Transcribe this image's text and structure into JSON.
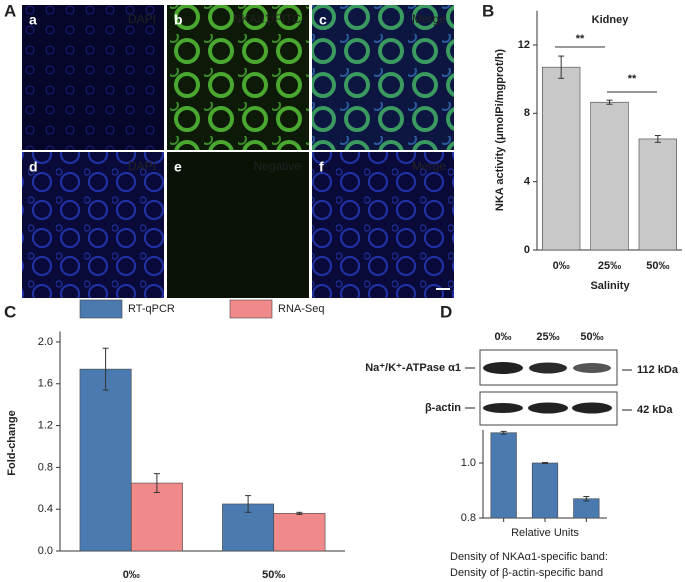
{
  "panel_labels": [
    "A",
    "B",
    "C",
    "D"
  ],
  "micrographs": [
    {
      "letter": "a",
      "stain": "DAPI"
    },
    {
      "letter": "b",
      "stain": "NKAα1/FITC"
    },
    {
      "letter": "c",
      "stain": "Merge"
    },
    {
      "letter": "d",
      "stain": "DAPI"
    },
    {
      "letter": "e",
      "stain": "Negative"
    },
    {
      "letter": "f",
      "stain": "Merge"
    }
  ],
  "blot": {
    "lanes": [
      "0‰",
      "25‰",
      "50‰"
    ],
    "rows": [
      {
        "label": "Na⁺/K⁺-ATPase α1",
        "size": "112 kDa"
      },
      {
        "label": "β-actin",
        "size": "42 kDa"
      }
    ]
  },
  "chart_data": [
    {
      "type": "bar",
      "title": "Kidney",
      "xlabel": "Salinity",
      "ylabel": "NKA activity (μmolPi/mgprot/h)",
      "categories": [
        "0‰",
        "25‰",
        "50‰"
      ],
      "values": [
        10.7,
        8.65,
        6.5
      ],
      "errors": [
        0.65,
        0.12,
        0.2
      ],
      "color": "#c8c8c8",
      "ylim": [
        0,
        14
      ],
      "yticks": [
        0,
        4,
        8,
        12
      ],
      "annotations": [
        "**",
        "**"
      ]
    },
    {
      "type": "bar",
      "ylabel": "Fold-change",
      "categories": [
        "0‰",
        "50‰"
      ],
      "series": [
        {
          "name": "RT-qPCR",
          "color": "#4a7ab0",
          "values": [
            1.74,
            0.45
          ],
          "errors": [
            0.2,
            0.08
          ]
        },
        {
          "name": "RNA-Seq",
          "color": "#f08a8a",
          "values": [
            0.65,
            0.36
          ],
          "errors": [
            0.09,
            0.01
          ]
        }
      ],
      "ylim": [
        0,
        2.1
      ],
      "yticks": [
        {
          "value": 0,
          "label": "0.0"
        },
        0.4,
        0.8,
        1.2,
        1.6,
        {
          "value": 2,
          "label": "2.0"
        }
      ]
    },
    {
      "type": "bar",
      "xlabel": "Relative Units",
      "categories": [
        null,
        null,
        null
      ],
      "values": [
        1.11,
        1.0,
        0.87
      ],
      "errors": [
        0.005,
        0.002,
        0.008
      ],
      "color": "#4a7ab0",
      "ylim": [
        0.8,
        1.12
      ],
      "yticks": [
        0.8,
        {
          "value": 1,
          "label": "1.0"
        }
      ],
      "caption": [
        "Density of NKAα1-specific band:",
        "Density of β-actin-specific band"
      ]
    }
  ]
}
